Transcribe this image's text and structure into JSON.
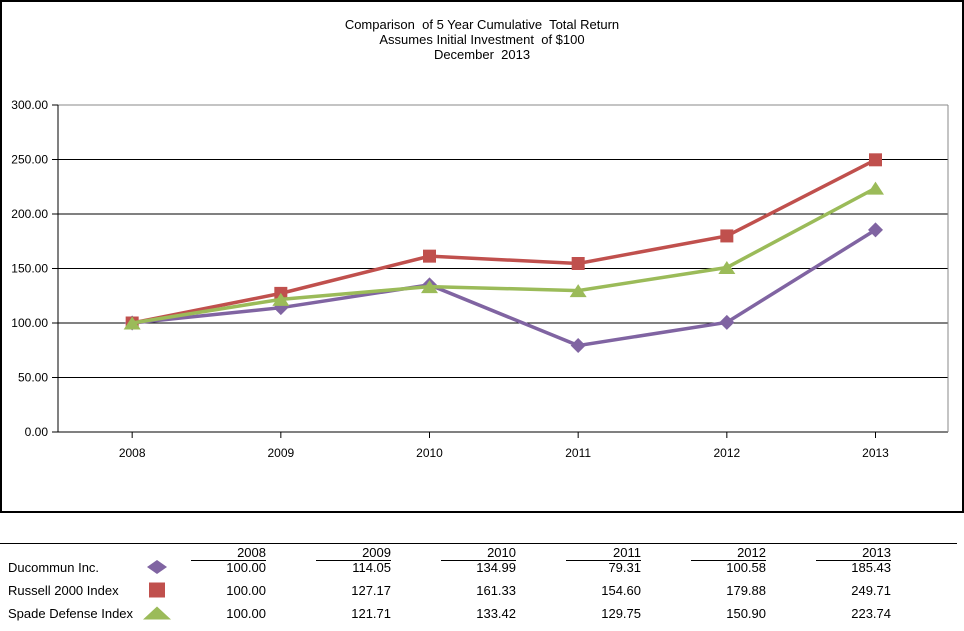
{
  "chart": {
    "title_line1": "Comparison  of 5 Year Cumulative  Total Return",
    "title_line2": "Assumes Initial Investment  of $100",
    "title_line3": "December  2013"
  },
  "chart_data": {
    "type": "line",
    "title": "Comparison of 5 Year Cumulative Total Return",
    "subtitle": "Assumes Initial Investment of $100 — December 2013",
    "categories": [
      "2008",
      "2009",
      "2010",
      "2011",
      "2012",
      "2013"
    ],
    "series": [
      {
        "name": "Ducommun Inc.",
        "marker": "diamond",
        "color": "#8064A2",
        "values": [
          100.0,
          114.05,
          134.99,
          79.31,
          100.58,
          185.43
        ]
      },
      {
        "name": "Russell 2000 Index",
        "marker": "square",
        "color": "#C0504D",
        "values": [
          100.0,
          127.17,
          161.33,
          154.6,
          179.88,
          249.71
        ]
      },
      {
        "name": "Spade Defense Index",
        "marker": "triangle",
        "color": "#9BBB59",
        "values": [
          100.0,
          121.71,
          133.42,
          129.75,
          150.9,
          223.74
        ]
      }
    ],
    "ylim": [
      0,
      300
    ],
    "yticks": [
      0,
      50,
      100,
      150,
      200,
      250,
      300
    ],
    "ytick_labels": [
      "0.00",
      "50.00",
      "100.00",
      "150.00",
      "200.00",
      "250.00",
      "300.00"
    ],
    "grid": true,
    "gridline_color": "#000000",
    "plot_border_color": "#8a8a8a",
    "axis_color": "#000000",
    "legend_position": "table-below"
  },
  "table": {
    "headers": [
      "2008",
      "2009",
      "2010",
      "2011",
      "2012",
      "2013"
    ],
    "rows": [
      {
        "name": "Ducommun Inc.",
        "marker": "diamond",
        "color": "#8064A2",
        "values": [
          "100.00",
          "114.05",
          "134.99",
          "79.31",
          "100.58",
          "185.43"
        ]
      },
      {
        "name": "Russell 2000 Index",
        "marker": "square",
        "color": "#C0504D",
        "values": [
          "100.00",
          "127.17",
          "161.33",
          "154.60",
          "179.88",
          "249.71"
        ]
      },
      {
        "name": "Spade Defense Index",
        "marker": "triangle",
        "color": "#9BBB59",
        "values": [
          "100.00",
          "121.71",
          "133.42",
          "129.75",
          "150.90",
          "223.74"
        ]
      }
    ]
  }
}
